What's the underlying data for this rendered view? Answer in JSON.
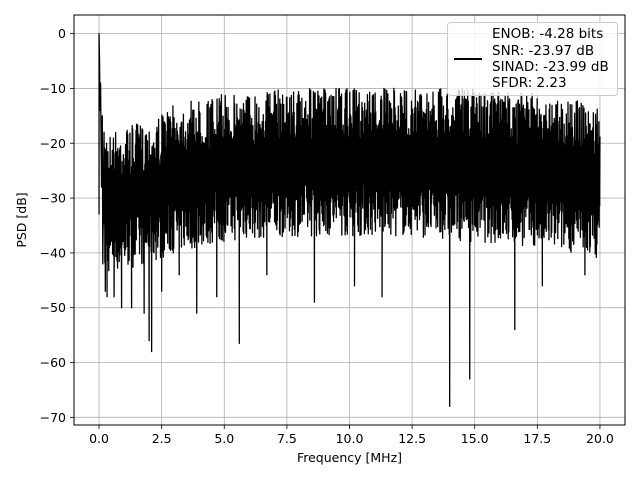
{
  "chart_data": {
    "type": "line",
    "title": "",
    "xlabel": "Frequency [MHz]",
    "ylabel": "PSD [dB]",
    "xlim": [
      -1.0,
      21.0
    ],
    "ylim": [
      -71.4,
      3.4
    ],
    "xticks": [
      0.0,
      2.5,
      5.0,
      7.5,
      10.0,
      12.5,
      15.0,
      17.5,
      20.0
    ],
    "xtick_labels": [
      "0.0",
      "2.5",
      "5.0",
      "7.5",
      "10.0",
      "12.5",
      "15.0",
      "17.5",
      "20.0"
    ],
    "yticks": [
      0,
      -10,
      -20,
      -30,
      -40,
      -50,
      -60,
      -70
    ],
    "ytick_labels": [
      "0",
      "−10",
      "−20",
      "−30",
      "−40",
      "−50",
      "−60",
      "−70"
    ],
    "grid": true,
    "legend": {
      "placement": "top-right",
      "lines": [
        "ENOB: -4.28 bits",
        "SNR: -23.97 dB",
        "SINAD: -23.99 dB",
        "SFDR: 2.23"
      ]
    },
    "series": [
      {
        "color": "#000000",
        "noise_band": {
          "x": [
            0.2,
            1.0,
            2.0,
            3.0,
            5.0,
            7.5,
            10.0,
            12.5,
            15.0,
            17.5,
            19.0,
            20.0
          ],
          "upper": [
            -18,
            -17,
            -16,
            -13,
            -11,
            -10,
            -10,
            -10,
            -10,
            -11,
            -12,
            -14
          ],
          "lower": [
            -44,
            -43,
            -42,
            -40,
            -38,
            -37,
            -37,
            -37,
            -38,
            -39,
            -40,
            -41
          ]
        },
        "points": [
          [
            0.0,
            -33
          ],
          [
            0.0,
            0.0
          ],
          [
            0.02,
            -5
          ],
          [
            0.04,
            -14
          ],
          [
            0.06,
            -9
          ],
          [
            0.1,
            -28
          ],
          [
            0.13,
            -15
          ],
          [
            0.15,
            -42
          ],
          [
            0.2,
            -18
          ],
          [
            0.25,
            -47
          ],
          [
            0.3,
            -20
          ],
          [
            0.32,
            -48
          ],
          [
            0.6,
            -48
          ],
          [
            0.9,
            -50
          ],
          [
            1.3,
            -50
          ],
          [
            1.8,
            -51
          ],
          [
            2.0,
            -56
          ],
          [
            2.1,
            -58
          ],
          [
            2.5,
            -47
          ],
          [
            3.2,
            -44
          ],
          [
            3.9,
            -51
          ],
          [
            4.7,
            -48
          ],
          [
            5.6,
            -56.5
          ],
          [
            6.7,
            -44
          ],
          [
            8.6,
            -49
          ],
          [
            10.2,
            -46
          ],
          [
            11.3,
            -48
          ],
          [
            14.0,
            -68
          ],
          [
            14.8,
            -63
          ],
          [
            16.6,
            -54
          ],
          [
            17.7,
            -46
          ],
          [
            19.4,
            -44
          ]
        ]
      }
    ]
  }
}
